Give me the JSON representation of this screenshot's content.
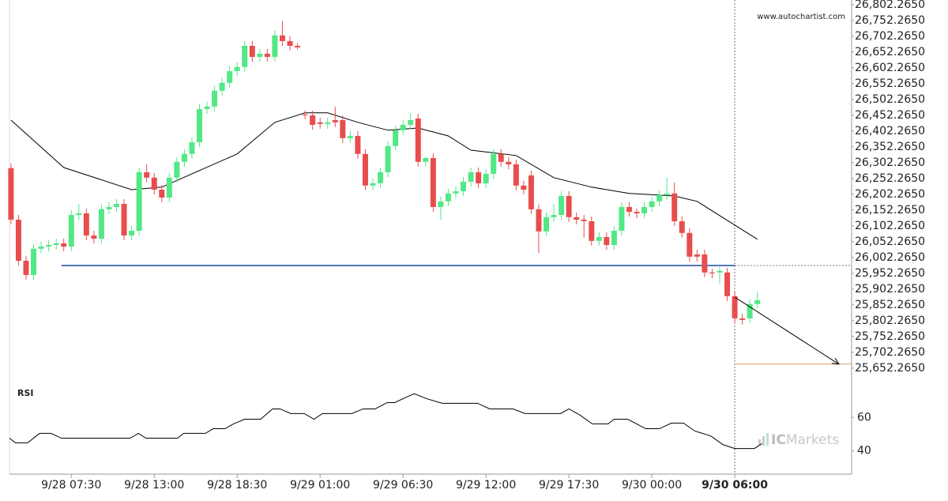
{
  "chart_data": [
    {
      "type": "candlestick",
      "watermark": "www.autochartist.com",
      "up_color": "#52e886",
      "down_color": "#e84d4d",
      "xlim": [
        -0.2,
        111.5
      ],
      "ylim": [
        25617,
        26817
      ],
      "xticks": [
        {
          "value": 8,
          "label": "9/28 07:30"
        },
        {
          "value": 19,
          "label": "9/28 13:00"
        },
        {
          "value": 30,
          "label": "9/28 18:30"
        },
        {
          "value": 41,
          "label": "9/29 01:00"
        },
        {
          "value": 52,
          "label": "9/29 06:30"
        },
        {
          "value": 63,
          "label": "9/29 12:00"
        },
        {
          "value": 74,
          "label": "9/29 17:30"
        },
        {
          "value": 85,
          "label": "9/30 00:00"
        },
        {
          "value": 96,
          "label": "9/30 06:00"
        }
      ],
      "yticks": [
        {
          "value": 26802.265,
          "label": "26,802.2650"
        },
        {
          "value": 26752.265,
          "label": "26,752.2650"
        },
        {
          "value": 26702.265,
          "label": "26,702.2650"
        },
        {
          "value": 26652.265,
          "label": "26,652.2650"
        },
        {
          "value": 26602.265,
          "label": "26,602.2650"
        },
        {
          "value": 26552.265,
          "label": "26,552.2650"
        },
        {
          "value": 26502.265,
          "label": "26,502.2650"
        },
        {
          "value": 26452.265,
          "label": "26,452.2650"
        },
        {
          "value": 26402.265,
          "label": "26,402.2650"
        },
        {
          "value": 26352.265,
          "label": "26,352.2650"
        },
        {
          "value": 26302.265,
          "label": "26,302.2650"
        },
        {
          "value": 26252.265,
          "label": "26,252.2650"
        },
        {
          "value": 26202.265,
          "label": "26,202.2650"
        },
        {
          "value": 26152.265,
          "label": "26,152.2650"
        },
        {
          "value": 26102.265,
          "label": "26,102.2650"
        },
        {
          "value": 26052.265,
          "label": "26,052.2650"
        },
        {
          "value": 26002.265,
          "label": "26,002.2650"
        },
        {
          "value": 25952.265,
          "label": "25,952.2650"
        },
        {
          "value": 25902.265,
          "label": "25,902.2650"
        },
        {
          "value": 25852.265,
          "label": "25,852.2650"
        },
        {
          "value": 25802.265,
          "label": "25,802.2650"
        },
        {
          "value": 25752.265,
          "label": "25,752.2650"
        },
        {
          "value": 25702.265,
          "label": "25,702.2650"
        },
        {
          "value": 25652.265,
          "label": "25,652.2650"
        }
      ],
      "x": [
        0,
        1,
        2,
        3,
        4,
        5,
        6,
        7,
        8,
        9,
        10,
        11,
        12,
        13,
        14,
        15,
        16,
        17,
        18,
        19,
        20,
        21,
        22,
        23,
        24,
        25,
        26,
        27,
        28,
        29,
        30,
        31,
        32,
        33,
        34,
        35,
        36,
        37,
        38,
        39,
        40,
        41,
        42,
        43,
        44,
        45,
        46,
        47,
        48,
        49,
        50,
        51,
        52,
        53,
        54,
        55,
        56,
        57,
        58,
        59,
        60,
        61,
        62,
        63,
        64,
        65,
        66,
        67,
        68,
        69,
        70,
        71,
        72,
        73,
        74,
        75,
        76,
        77,
        78,
        79,
        80,
        81,
        82,
        83,
        84,
        85,
        86,
        87,
        88,
        89,
        90,
        91,
        92,
        93,
        94,
        95,
        96,
        97,
        98,
        99
      ],
      "ohlc": [
        [
          26285,
          26300,
          26107,
          26122
        ],
        [
          26122,
          26137,
          25977,
          25992
        ],
        [
          25992,
          26007,
          25932,
          25947
        ],
        [
          25947,
          26045,
          25932,
          26030
        ],
        [
          26030,
          26052,
          26015,
          26037
        ],
        [
          26037,
          26057,
          26022,
          26042
        ],
        [
          26042,
          26062,
          26027,
          26047
        ],
        [
          26047,
          26062,
          26022,
          26037
        ],
        [
          26037,
          26152,
          26022,
          26137
        ],
        [
          26137,
          26172,
          26122,
          26142
        ],
        [
          26142,
          26157,
          26057,
          26072
        ],
        [
          26072,
          26087,
          26047,
          26062
        ],
        [
          26062,
          26170,
          26047,
          26155
        ],
        [
          26155,
          26177,
          26140,
          26162
        ],
        [
          26162,
          26187,
          26147,
          26172
        ],
        [
          26172,
          26187,
          26057,
          26072
        ],
        [
          26072,
          26102,
          26057,
          26087
        ],
        [
          26087,
          26287,
          26072,
          26272
        ],
        [
          26272,
          26297,
          26240,
          26255
        ],
        [
          26255,
          26270,
          26202,
          26217
        ],
        [
          26217,
          26232,
          26177,
          26192
        ],
        [
          26192,
          26270,
          26177,
          26255
        ],
        [
          26255,
          26320,
          26240,
          26305
        ],
        [
          26305,
          26345,
          26290,
          26330
        ],
        [
          26330,
          26382,
          26315,
          26367
        ],
        [
          26367,
          26487,
          26352,
          26472
        ],
        [
          26472,
          26495,
          26457,
          26480
        ],
        [
          26480,
          26545,
          26465,
          26530
        ],
        [
          26530,
          26570,
          26515,
          26555
        ],
        [
          26555,
          26607,
          26540,
          26592
        ],
        [
          26592,
          26620,
          26577,
          26605
        ],
        [
          26605,
          26687,
          26590,
          26672
        ],
        [
          26672,
          26687,
          26622,
          26637
        ],
        [
          26637,
          26662,
          26622,
          26647
        ],
        [
          26647,
          26662,
          26622,
          26637
        ],
        [
          26637,
          26720,
          26622,
          26705
        ],
        [
          26705,
          26750,
          26672,
          26687
        ],
        [
          26687,
          26702,
          26657,
          26672
        ],
        [
          26672,
          26680,
          26660,
          26667
        ],
        [
          26455,
          26467,
          26440,
          26452
        ],
        [
          26452,
          26467,
          26407,
          26422
        ],
        [
          26430,
          26445,
          26410,
          26425
        ],
        [
          26425,
          26445,
          26410,
          26430
        ],
        [
          26437,
          26480,
          26415,
          26430
        ],
        [
          26437,
          26452,
          26365,
          26380
        ],
        [
          26380,
          26402,
          26365,
          26387
        ],
        [
          26387,
          26402,
          26315,
          26330
        ],
        [
          26330,
          26345,
          26215,
          26230
        ],
        [
          26230,
          26252,
          26215,
          26237
        ],
        [
          26237,
          26287,
          26222,
          26272
        ],
        [
          26272,
          26370,
          26257,
          26355
        ],
        [
          26355,
          26420,
          26340,
          26405
        ],
        [
          26405,
          26437,
          26390,
          26422
        ],
        [
          26422,
          26460,
          26407,
          26437
        ],
        [
          26442,
          26457,
          26290,
          26305
        ],
        [
          26305,
          26320,
          26290,
          26317
        ],
        [
          26317,
          26332,
          26147,
          26162
        ],
        [
          26162,
          26195,
          26122,
          26180
        ],
        [
          26180,
          26220,
          26165,
          26205
        ],
        [
          26205,
          26227,
          26190,
          26212
        ],
        [
          26212,
          26257,
          26197,
          26242
        ],
        [
          26242,
          26287,
          26227,
          26272
        ],
        [
          26272,
          26287,
          26222,
          26237
        ],
        [
          26237,
          26282,
          26222,
          26267
        ],
        [
          26267,
          26345,
          26252,
          26330
        ],
        [
          26330,
          26345,
          26290,
          26305
        ],
        [
          26305,
          26320,
          26282,
          26297
        ],
        [
          26297,
          26312,
          26215,
          26230
        ],
        [
          26230,
          26245,
          26202,
          26217
        ],
        [
          26262,
          26277,
          26140,
          26155
        ],
        [
          26155,
          26170,
          26017,
          26085
        ],
        [
          26085,
          26145,
          26070,
          26130
        ],
        [
          26130,
          26172,
          26115,
          26137
        ],
        [
          26137,
          26212,
          26122,
          26197
        ],
        [
          26197,
          26212,
          26115,
          26130
        ],
        [
          26130,
          26145,
          26107,
          26122
        ],
        [
          26122,
          26137,
          26065,
          26117
        ],
        [
          26117,
          26132,
          26040,
          26055
        ],
        [
          26055,
          26082,
          26040,
          26067
        ],
        [
          26067,
          26082,
          26027,
          26042
        ],
        [
          26042,
          26102,
          26027,
          26087
        ],
        [
          26087,
          26177,
          26072,
          26162
        ],
        [
          26162,
          26177,
          26132,
          26147
        ],
        [
          26147,
          26157,
          26127,
          26142
        ],
        [
          26142,
          26177,
          26127,
          26162
        ],
        [
          26162,
          26195,
          26147,
          26180
        ],
        [
          26180,
          26215,
          26165,
          26200
        ],
        [
          26200,
          26255,
          26185,
          26205
        ],
        [
          26205,
          26240,
          26102,
          26117
        ],
        [
          26117,
          26132,
          26065,
          26080
        ],
        [
          26080,
          26095,
          25990,
          26005
        ],
        [
          26012,
          26027,
          25990,
          26005
        ],
        [
          26012,
          26027,
          25940,
          25955
        ],
        [
          25955,
          25967,
          25937,
          25952
        ],
        [
          25955,
          25972,
          25920,
          25960
        ],
        [
          25955,
          25970,
          25865,
          25880
        ],
        [
          25880,
          25895,
          25795,
          25810
        ],
        [
          25810,
          25825,
          25790,
          25805
        ],
        [
          25810,
          25870,
          25795,
          25855
        ],
        [
          25855,
          25895,
          25840,
          25867
        ]
      ],
      "ma": {
        "color": "#000000",
        "x": [
          0,
          7,
          16,
          20,
          30,
          35,
          39,
          42,
          46,
          50,
          54,
          58,
          61,
          67,
          72,
          77,
          82,
          88,
          91,
          96,
          99
        ],
        "values": [
          26437,
          26287,
          26217,
          26225,
          26330,
          26430,
          26460,
          26460,
          26430,
          26405,
          26412,
          26387,
          26342,
          26325,
          26255,
          26225,
          26205,
          26197,
          26180,
          26105,
          26060
        ]
      },
      "support": {
        "color": "#4f79b5",
        "value": 25977,
        "x": [
          6.7,
          96
        ]
      },
      "target": {
        "color": "#e39b5c",
        "value": 25665,
        "x": [
          96,
          111.5
        ]
      },
      "arrow": {
        "color": "#000000",
        "x": [
          96,
          109.8
        ],
        "y": [
          25877,
          25665
        ]
      }
    },
    {
      "type": "line",
      "title": "RSI",
      "color": "#000000",
      "ylim": [
        26,
        83
      ],
      "yticks": [
        60,
        40
      ],
      "x": [
        -0.2,
        0.6,
        2.2,
        3.8,
        5.3,
        6.7,
        15.8,
        16.9,
        17.9,
        22.1,
        22.9,
        25.8,
        26.8,
        28.4,
        29.5,
        31.0,
        33.1,
        34.7,
        35.7,
        37.1,
        38.9,
        40.2,
        41.3,
        45.2,
        46.7,
        48.3,
        49.9,
        50.9,
        52.5,
        53.5,
        55.1,
        57.2,
        61.9,
        63.5,
        66.6,
        68.2,
        72.9,
        74.0,
        75.5,
        77.1,
        79.2,
        80.0,
        81.8,
        84.2,
        86.0,
        87.6,
        89.2,
        90.7,
        92.8,
        94.4,
        96.0,
        98.6,
        99.6
      ],
      "values": [
        47.6,
        44.8,
        44.8,
        50.5,
        50.5,
        47.6,
        47.6,
        50.5,
        47.6,
        47.6,
        50.5,
        50.5,
        53.3,
        53.3,
        56.2,
        59.0,
        59.0,
        65.2,
        65.2,
        62.4,
        62.4,
        59.0,
        62.4,
        62.4,
        65.2,
        65.2,
        69.0,
        69.0,
        72.4,
        74.3,
        71.4,
        68.6,
        68.6,
        65.2,
        65.2,
        62.4,
        62.4,
        65.2,
        61.4,
        56.2,
        56.2,
        59.0,
        59.0,
        53.3,
        53.3,
        56.7,
        56.7,
        51.9,
        49.0,
        43.8,
        41.4,
        41.4,
        44.3
      ]
    }
  ],
  "logo": [
    "IC",
    "Markets"
  ]
}
